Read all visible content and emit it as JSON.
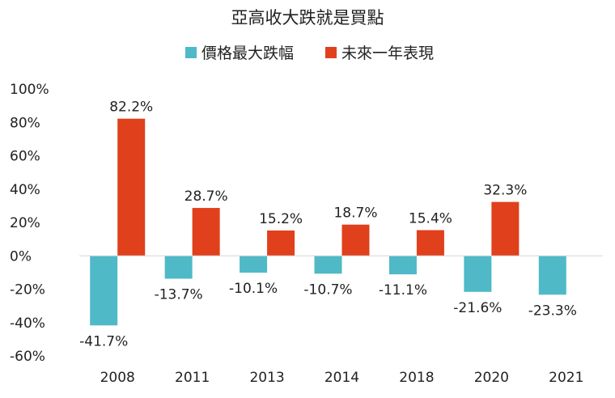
{
  "chart_data": {
    "type": "bar",
    "title": "亞高收大跌就是買點",
    "categories": [
      "2008",
      "2011",
      "2013",
      "2014",
      "2018",
      "2020",
      "2021"
    ],
    "series": [
      {
        "name": "價格最大跌幅",
        "color": "#4fb9c7",
        "values": [
          -41.7,
          -13.7,
          -10.1,
          -10.7,
          -11.1,
          -21.6,
          -23.3
        ],
        "labels": [
          "-41.7%",
          "-13.7%",
          "-10.1%",
          "-10.7%",
          "-11.1%",
          "-21.6%",
          "-23.3%"
        ]
      },
      {
        "name": "未來一年表現",
        "color": "#e0401c",
        "values": [
          82.2,
          28.7,
          15.2,
          18.7,
          15.4,
          32.3,
          null
        ],
        "labels": [
          "82.2%",
          "28.7%",
          "15.2%",
          "18.7%",
          "15.4%",
          "32.3%",
          ""
        ]
      }
    ],
    "ylim": [
      -60,
      100
    ],
    "yticks": [
      100,
      80,
      60,
      40,
      20,
      0,
      -20,
      -40,
      -60
    ],
    "ytick_labels": [
      "100%",
      "80%",
      "60%",
      "40%",
      "20%",
      "0%",
      "-20%",
      "-40%",
      "-60%"
    ],
    "xlabel": "",
    "ylabel": "",
    "legend_position": "top-center",
    "grid": false
  }
}
